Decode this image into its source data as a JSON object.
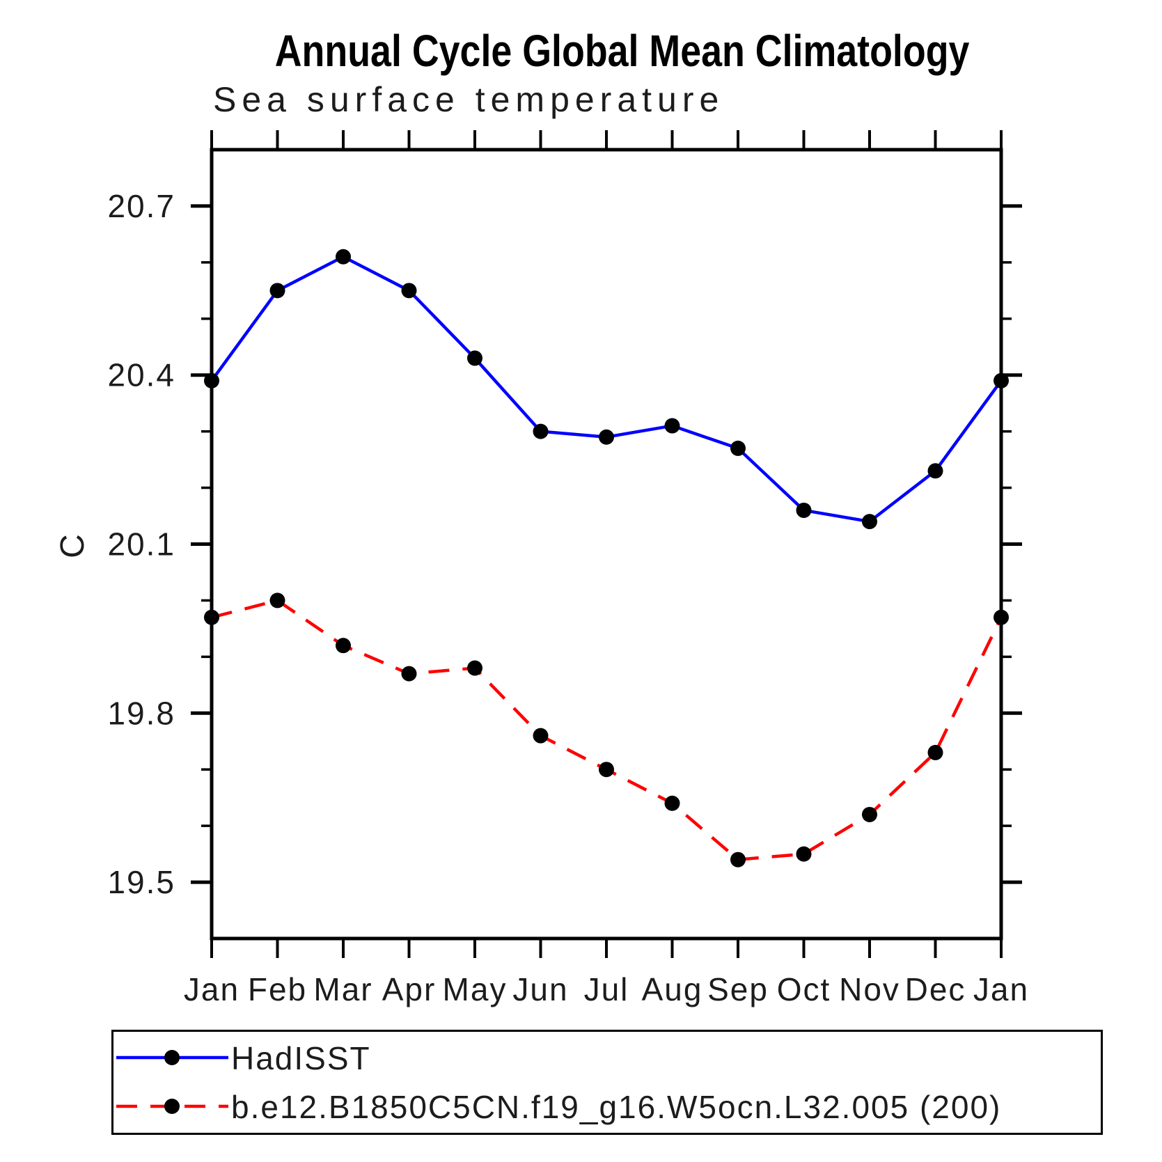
{
  "page": {
    "title": "Annual Cycle Global Mean Climatology",
    "subtitle": "Sea surface temperature"
  },
  "chart_data": {
    "type": "line",
    "title": "Annual Cycle Global Mean Climatology",
    "subtitle": "Sea surface temperature",
    "ylabel": "C",
    "categories": [
      "Jan",
      "Feb",
      "Mar",
      "Apr",
      "May",
      "Jun",
      "Jul",
      "Aug",
      "Sep",
      "Oct",
      "Nov",
      "Dec",
      "Jan"
    ],
    "series": [
      {
        "name": "HadISST",
        "color": "#0000ff",
        "line_style": "solid",
        "values": [
          20.39,
          20.55,
          20.61,
          20.55,
          20.43,
          20.3,
          20.29,
          20.31,
          20.27,
          20.16,
          20.14,
          20.23,
          20.39
        ]
      },
      {
        "name": "b.e12.B1850C5CN.f19_g16.W5ocn.L32.005 (200)",
        "color": "#ff0000",
        "line_style": "dashed",
        "values": [
          19.97,
          20.0,
          19.92,
          19.87,
          19.88,
          19.76,
          19.7,
          19.64,
          19.54,
          19.55,
          19.62,
          19.73,
          19.97
        ]
      }
    ],
    "marker": {
      "shape": "circle",
      "color": "#000000"
    },
    "y_ticks_major": [
      20.7,
      20.4,
      20.1,
      19.8,
      19.5
    ],
    "y_minor_step": 0.1,
    "ylim": [
      19.4,
      20.8
    ],
    "grid": false,
    "axis_color": "#000000",
    "legend_position": "bottom-left"
  }
}
